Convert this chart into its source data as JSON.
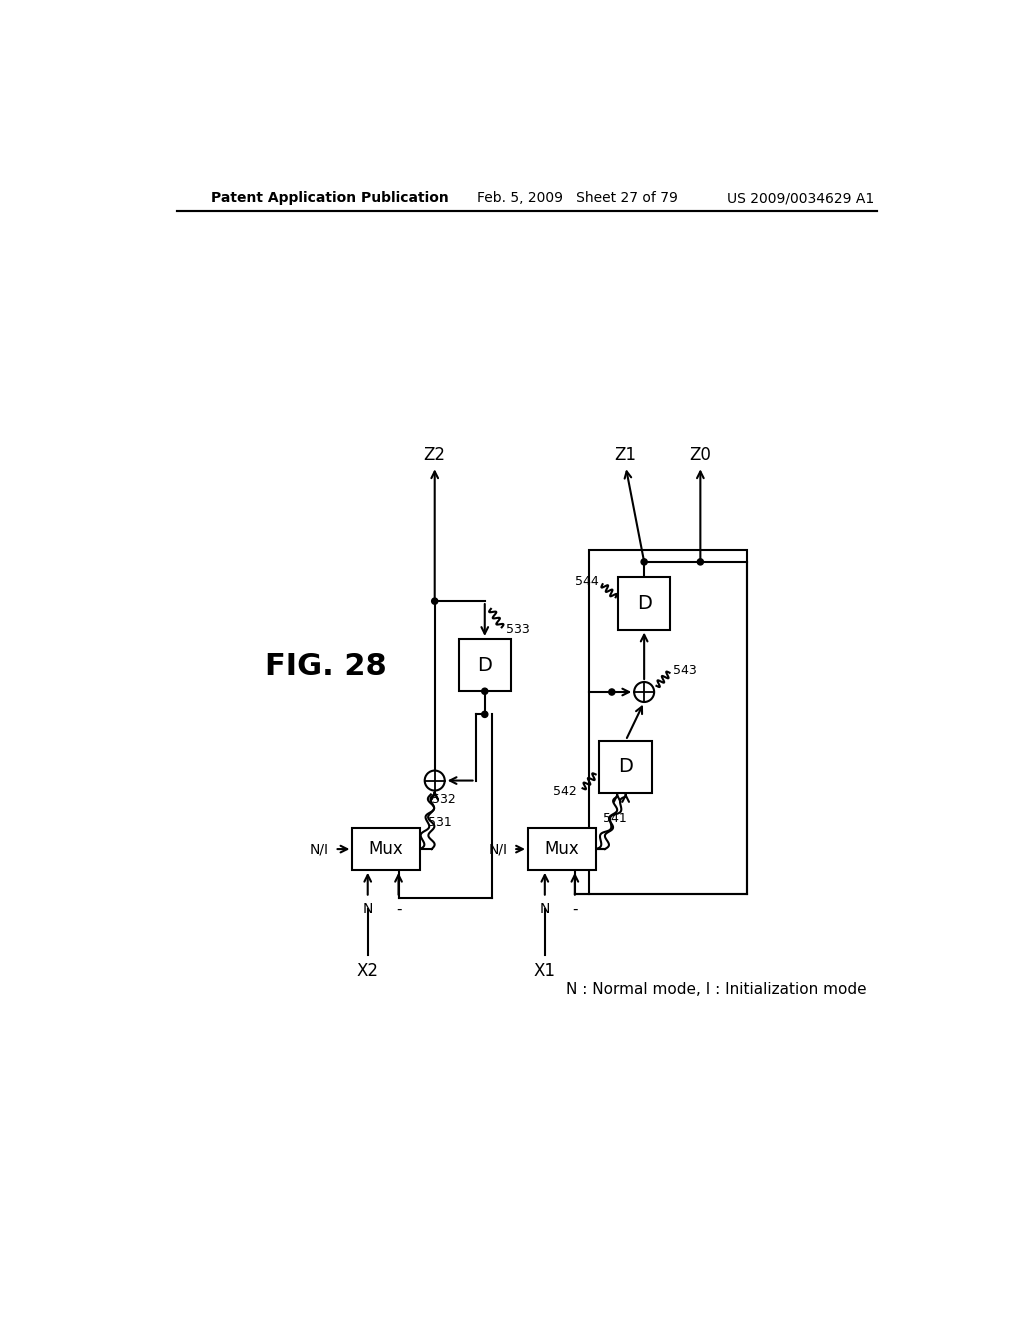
{
  "header_left": "Patent Application Publication",
  "header_mid": "Feb. 5, 2009   Sheet 27 of 79",
  "header_right": "US 2009/0034629 A1",
  "fig_label": "FIG. 28",
  "note": "N : Normal mode, I : Initialization mode",
  "background": "#ffffff",
  "lc": "#000000",
  "label_531": "531",
  "label_532": "532",
  "label_533": "533",
  "label_541": "541",
  "label_542": "542",
  "label_543": "543",
  "label_544": "544",
  "out_z2": "Z2",
  "out_z1": "Z1",
  "out_z0": "Z0",
  "in_x2": "X2",
  "in_x1": "X1",
  "sel_ni": "N/I",
  "sel_n": "N",
  "sel_dash": "-",
  "mux_label": "Mux",
  "d_label": "D"
}
